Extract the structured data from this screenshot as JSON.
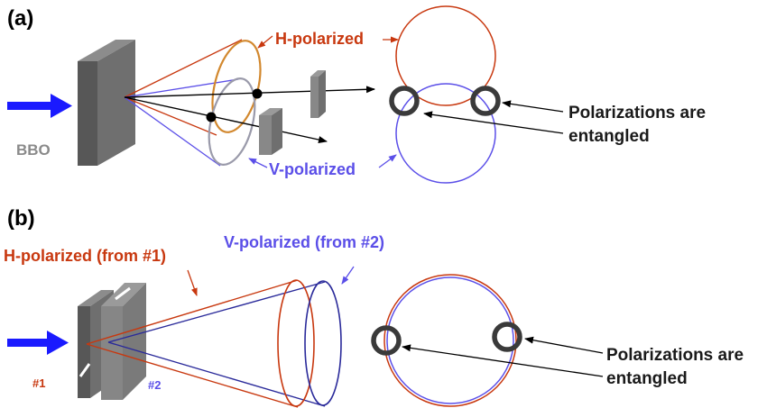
{
  "colors": {
    "h_polarized": "#c8380f",
    "v_polarized": "#5b4fe8",
    "beam": "#1a1aff",
    "crystal": "#6b6b6b",
    "marker_ring": "#3a3a3a"
  },
  "panel_a": {
    "label": "(a)",
    "crystal_label": "BBO",
    "h_label": "H-polarized",
    "v_label": "V-polarized",
    "entangled_line1": "Polarizations are",
    "entangled_line2": "entangled"
  },
  "panel_b": {
    "label": "(b)",
    "h_label": "H-polarized (from #1)",
    "v_label": "V-polarized (from #2)",
    "crystal1_label": "#1",
    "crystal2_label": "#2",
    "entangled_line1": "Polarizations are",
    "entangled_line2": "entangled"
  }
}
